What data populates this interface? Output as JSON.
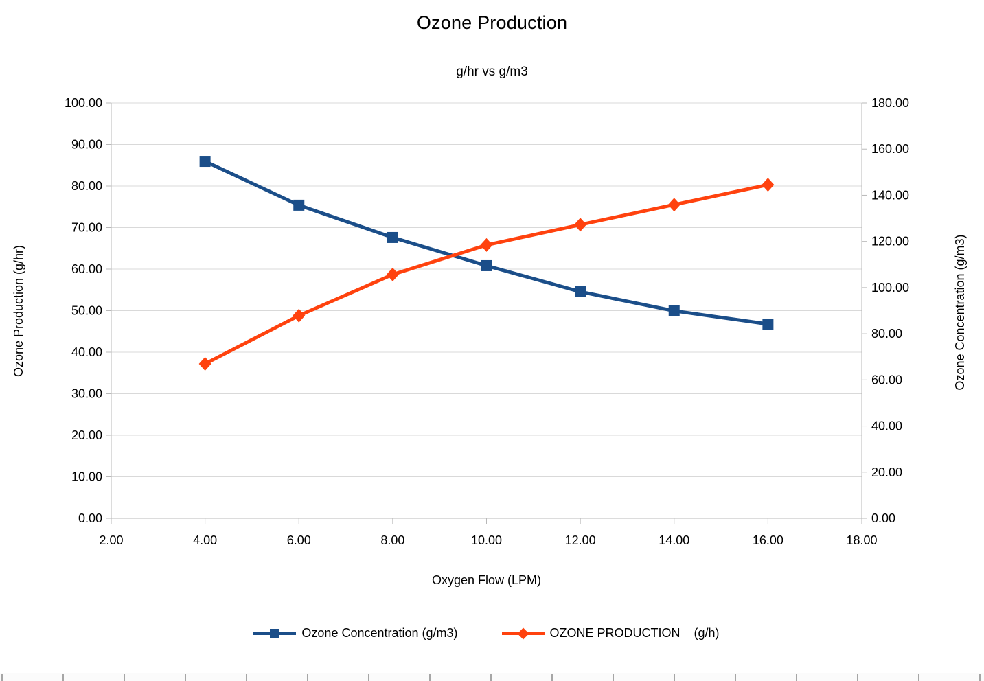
{
  "chart_data": {
    "type": "line",
    "title": "Ozone Production",
    "subtitle": "g/hr vs g/m3",
    "xlabel": "Oxygen Flow (LPM)",
    "ylabel_left": "Ozone Production (g/hr)",
    "ylabel_right": "Ozone Concentration (g/m3)",
    "x": [
      4,
      6,
      8,
      10,
      12,
      14,
      16
    ],
    "series": [
      {
        "name": "Ozone Concentration (g/m3)",
        "axis": "right",
        "color": "#1B4E89",
        "marker": "square",
        "values": [
          154.7,
          135.7,
          121.7,
          109.5,
          98.2,
          89.9,
          84.2
        ]
      },
      {
        "name": "OZONE PRODUCTION    (g/h)",
        "axis": "left",
        "color": "#FF420E",
        "marker": "diamond",
        "values": [
          37.2,
          48.8,
          58.7,
          65.8,
          70.7,
          75.5,
          80.3
        ]
      }
    ],
    "x_axis": {
      "min": 2,
      "max": 18,
      "step": 2,
      "labels": [
        "2.00",
        "4.00",
        "6.00",
        "8.00",
        "10.00",
        "12.00",
        "14.00",
        "16.00",
        "18.00"
      ]
    },
    "y_left": {
      "min": 0,
      "max": 100,
      "step": 10,
      "labels": [
        "0.00",
        "10.00",
        "20.00",
        "30.00",
        "40.00",
        "50.00",
        "60.00",
        "70.00",
        "80.00",
        "90.00",
        "100.00"
      ]
    },
    "y_right": {
      "min": 0,
      "max": 180,
      "step": 20,
      "labels": [
        "0.00",
        "20.00",
        "40.00",
        "60.00",
        "80.00",
        "100.00",
        "120.00",
        "140.00",
        "160.00",
        "180.00"
      ]
    },
    "grid": true,
    "legend_position": "bottom",
    "grid_color": "#d9d9d9",
    "axis_color": "#b8b8b8"
  },
  "legend": [
    {
      "label": "Ozone Concentration (g/m3)",
      "color": "#1B4E89",
      "marker": "square"
    },
    {
      "label": "OZONE PRODUCTION    (g/h)",
      "color": "#FF420E",
      "marker": "diamond"
    }
  ]
}
